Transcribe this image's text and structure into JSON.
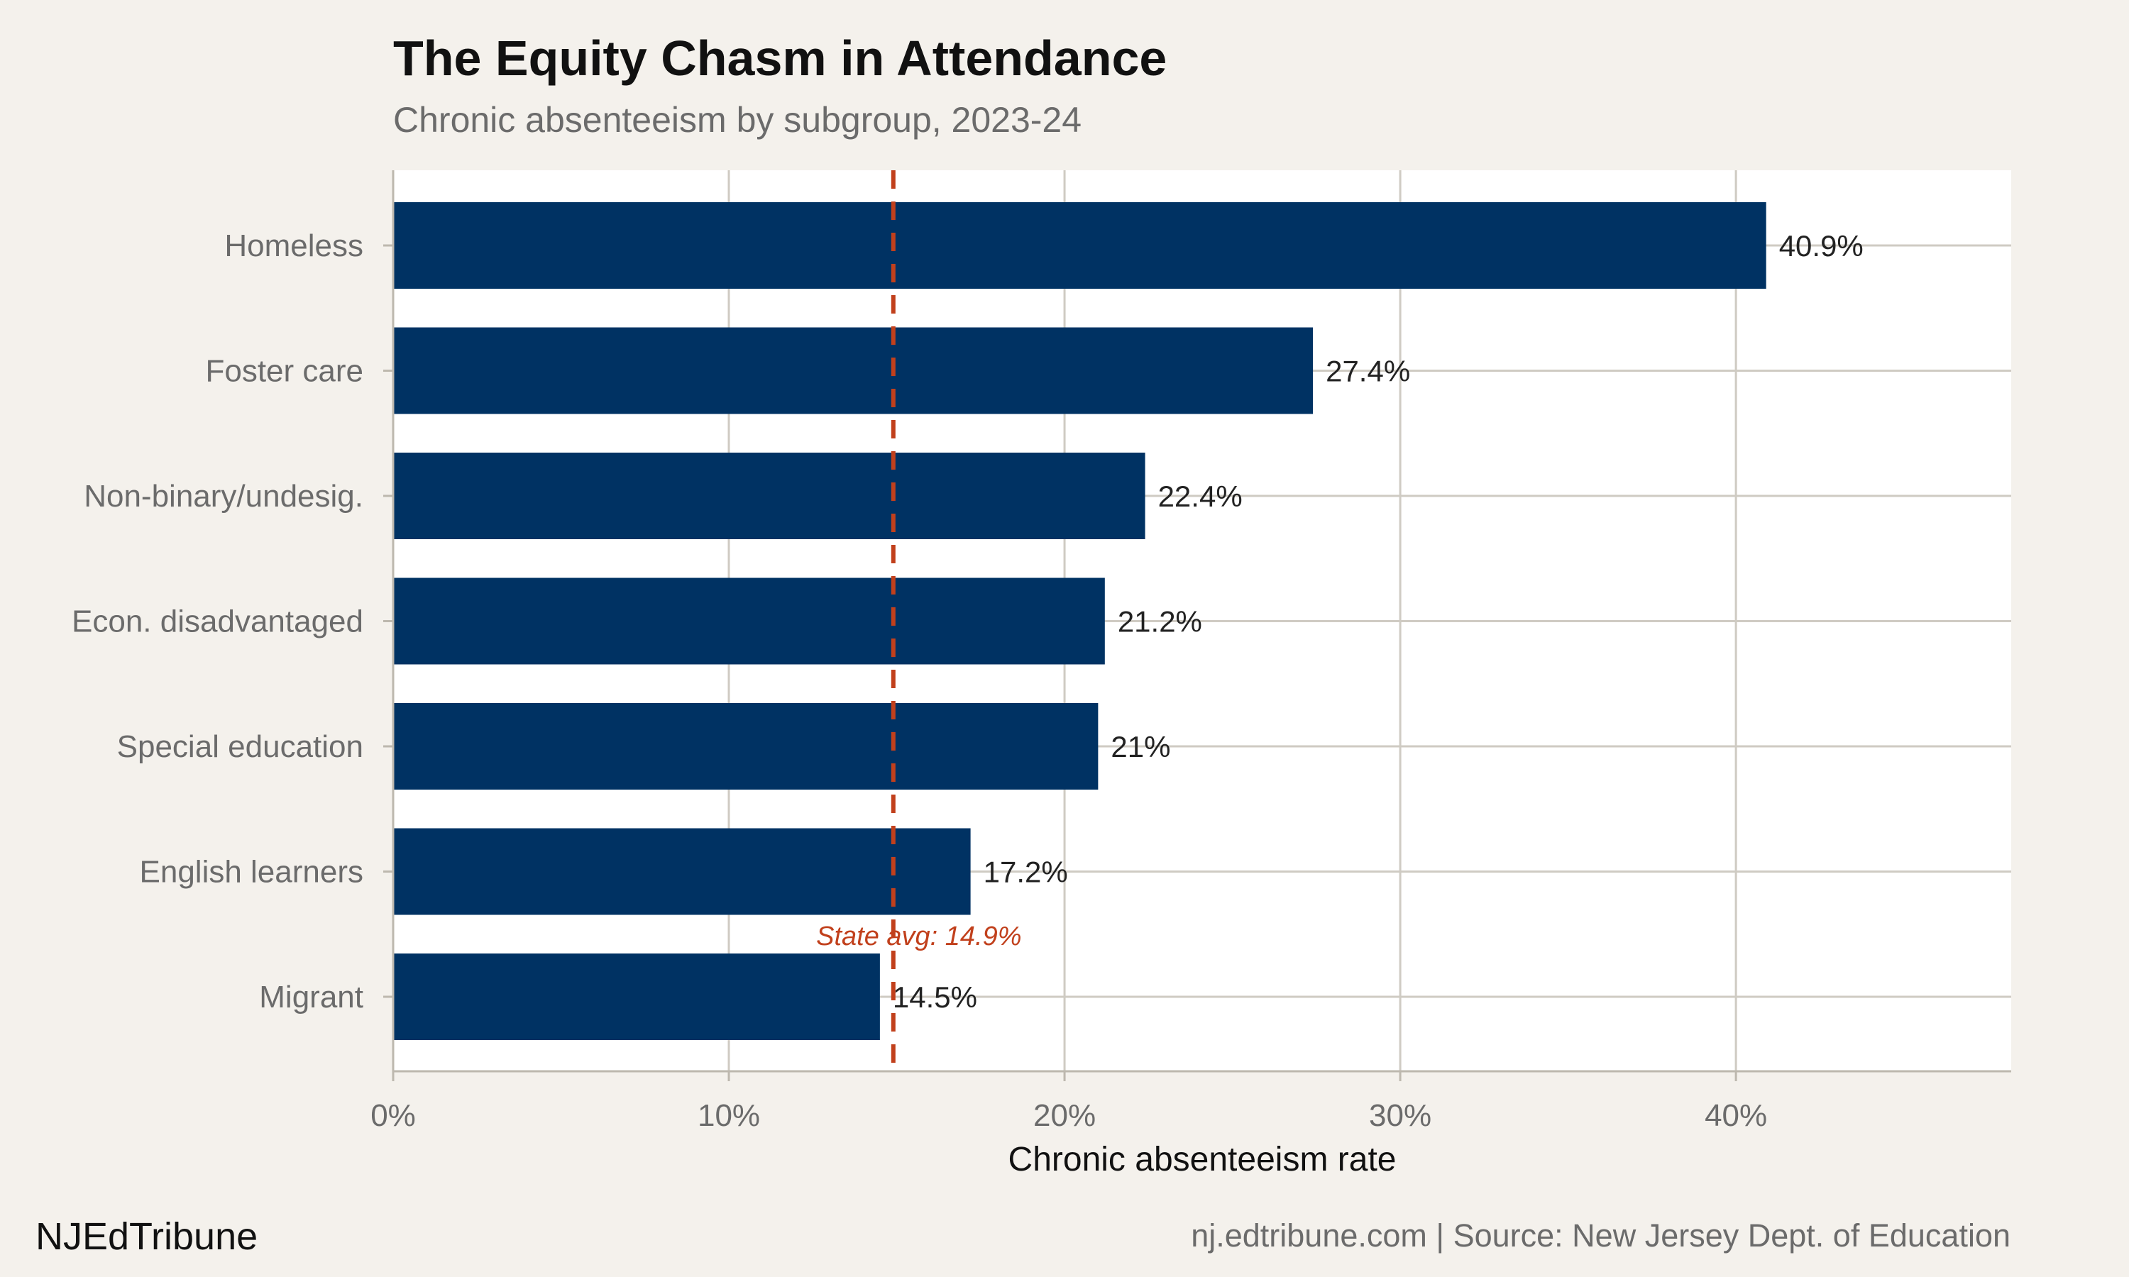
{
  "header": {
    "title": "The Equity Chasm in Attendance",
    "subtitle": "Chronic absenteeism by subgroup, 2023-24"
  },
  "footer": {
    "brand": "NJEdTribune",
    "source": "nj.edtribune.com | Source: New Jersey Dept. of Education"
  },
  "colors": {
    "bar": "#003263",
    "reference_line": "#c1401c",
    "panel": "#ffffff",
    "background": "#f4f1ec",
    "grid": "#cfcbc3"
  },
  "chart_data": {
    "type": "bar",
    "orientation": "horizontal",
    "title": "The Equity Chasm in Attendance",
    "subtitle": "Chronic absenteeism by subgroup, 2023-24",
    "xlabel": "Chronic absenteeism rate",
    "ylabel": "",
    "categories": [
      "Homeless",
      "Foster care",
      "Non-binary/undesig.",
      "Econ. disadvantaged",
      "Special education",
      "English learners",
      "Migrant"
    ],
    "values": [
      40.9,
      27.4,
      22.4,
      21.2,
      21.0,
      17.2,
      14.5
    ],
    "value_labels": [
      "40.9%",
      "27.4%",
      "22.4%",
      "21.2%",
      "21%",
      "17.2%",
      "14.5%"
    ],
    "xlim": [
      0,
      48.2
    ],
    "xticks": [
      0,
      10,
      20,
      30,
      40
    ],
    "xtick_labels": [
      "0%",
      "10%",
      "20%",
      "30%",
      "40%"
    ],
    "grid": true,
    "reference_line": {
      "value": 14.9,
      "style": "dashed",
      "label": "State avg: 14.9%"
    }
  }
}
